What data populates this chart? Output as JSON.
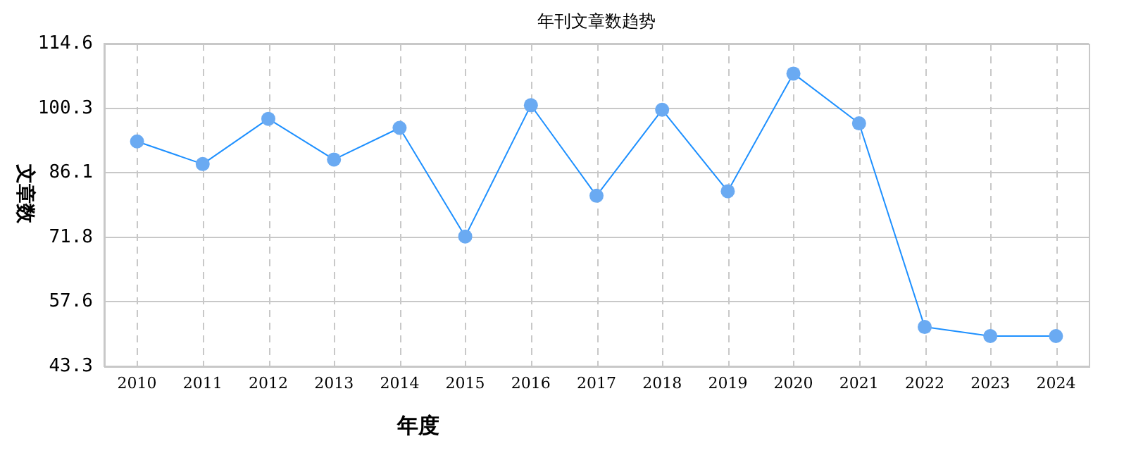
{
  "chart_data": {
    "type": "line",
    "title": "年刊文章数趋势",
    "xlabel": "年度",
    "ylabel": "文章数",
    "categories": [
      "2010",
      "2011",
      "2012",
      "2013",
      "2014",
      "2015",
      "2016",
      "2017",
      "2018",
      "2019",
      "2020",
      "2021",
      "2022",
      "2023",
      "2024"
    ],
    "series": [
      {
        "color": "#1e90ff",
        "values": [
          93,
          88,
          98,
          89,
          96,
          72,
          101,
          81,
          100,
          82,
          108,
          97,
          52,
          50,
          50
        ]
      }
    ],
    "marker": "circle",
    "grid": true,
    "legend": false,
    "ylim": [
      43.3,
      114.6
    ],
    "yticks": [
      43.3,
      57.6,
      71.8,
      86.1,
      100.3,
      114.6
    ]
  }
}
